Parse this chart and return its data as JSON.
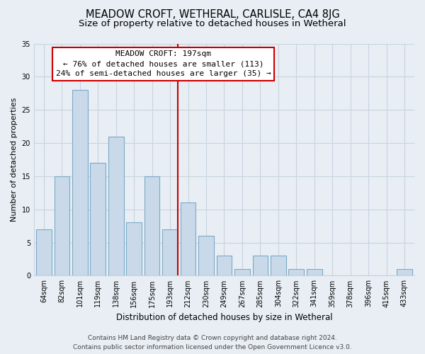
{
  "title": "MEADOW CROFT, WETHERAL, CARLISLE, CA4 8JG",
  "subtitle": "Size of property relative to detached houses in Wetheral",
  "xlabel": "Distribution of detached houses by size in Wetheral",
  "ylabel": "Number of detached properties",
  "bar_labels": [
    "64sqm",
    "82sqm",
    "101sqm",
    "119sqm",
    "138sqm",
    "156sqm",
    "175sqm",
    "193sqm",
    "212sqm",
    "230sqm",
    "249sqm",
    "267sqm",
    "285sqm",
    "304sqm",
    "322sqm",
    "341sqm",
    "359sqm",
    "378sqm",
    "396sqm",
    "415sqm",
    "433sqm"
  ],
  "bar_values": [
    7,
    15,
    28,
    17,
    21,
    8,
    15,
    7,
    11,
    6,
    3,
    1,
    3,
    3,
    1,
    1,
    0,
    0,
    0,
    0,
    1
  ],
  "bar_color": "#c9d9ea",
  "bar_edge_color": "#7aaac8",
  "vline_x_index": 7,
  "vline_color": "#cc0000",
  "annotation_title": "MEADOW CROFT: 197sqm",
  "annotation_line1": "← 76% of detached houses are smaller (113)",
  "annotation_line2": "24% of semi-detached houses are larger (35) →",
  "ylim": [
    0,
    35
  ],
  "yticks": [
    0,
    5,
    10,
    15,
    20,
    25,
    30,
    35
  ],
  "footer_line1": "Contains HM Land Registry data © Crown copyright and database right 2024.",
  "footer_line2": "Contains public sector information licensed under the Open Government Licence v3.0.",
  "bg_color": "#e8eef4",
  "plot_bg_color": "#e8eef4",
  "grid_color": "#c8d4e0",
  "title_fontsize": 10.5,
  "subtitle_fontsize": 9.5,
  "tick_fontsize": 7,
  "ylabel_fontsize": 8,
  "xlabel_fontsize": 8.5,
  "footer_fontsize": 6.5,
  "annotation_fontsize": 8
}
